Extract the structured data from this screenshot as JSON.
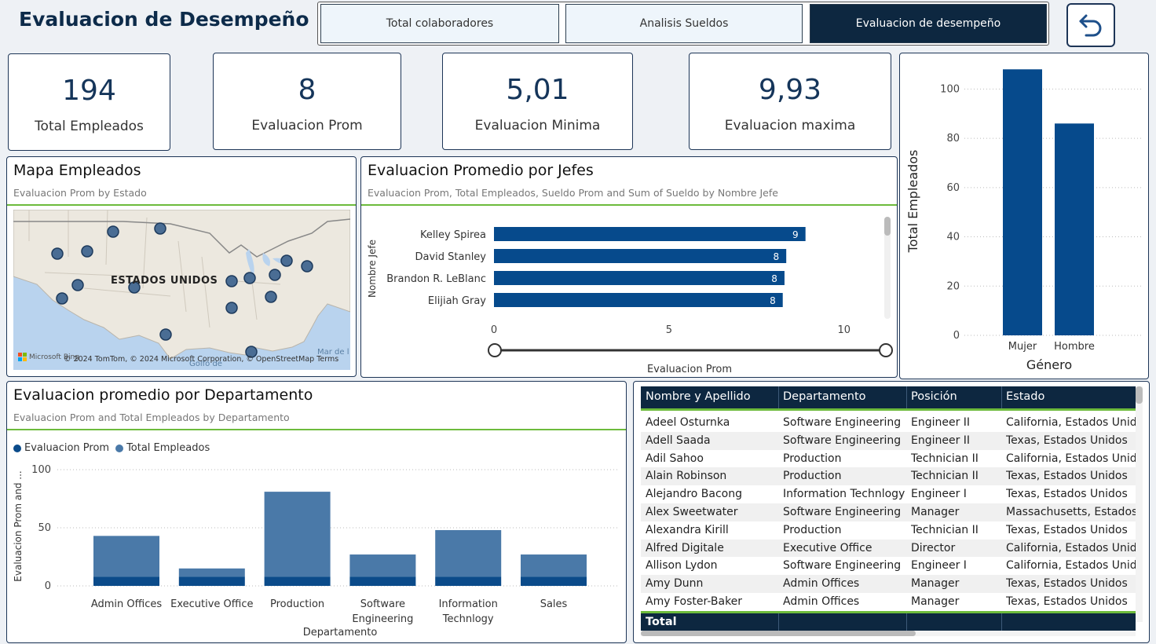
{
  "header": {
    "title": "Evaluacion de Desempeño",
    "tabs": [
      {
        "label": "Total colaboradores"
      },
      {
        "label": "Analisis Sueldos"
      },
      {
        "label": "Evaluacion de desempeño"
      }
    ],
    "active_tab": 2
  },
  "kpis": [
    {
      "value": "194",
      "label": "Total Empleados"
    },
    {
      "value": "8",
      "label": "Evaluacion Prom"
    },
    {
      "value": "5,01",
      "label": "Evaluacion Minima"
    },
    {
      "value": "9,93",
      "label": "Evaluacion maxima"
    }
  ],
  "map": {
    "title": "Mapa Empleados",
    "subtitle": "Evaluacion Prom by Estado",
    "country_label": "ESTADOS UNIDOS",
    "water_label": "Mar de l",
    "gulf_label": "Golfo de",
    "attribution": "© 2024 TomTom, © 2024 Microsoft Corporation, © OpenStreetMap  Terms",
    "brand": "Microsoft Bing"
  },
  "gender_chart": {
    "chart_data": {
      "type": "bar",
      "categories": [
        "Mujer",
        "Hombre"
      ],
      "values": [
        108,
        86
      ],
      "ylabel": "Total Empleados",
      "xlabel": "Género",
      "ylim": [
        0,
        110
      ],
      "yticks": [
        0,
        20,
        40,
        60,
        80,
        100
      ],
      "color": "#064a8c",
      "grid": true
    }
  },
  "bosses_chart": {
    "title": "Evaluacion Promedio por Jefes",
    "subtitle": "Evaluacion Prom, Total Empleados, Sueldo Prom and Sum of Sueldo by Nombre Jefe",
    "chart_data": {
      "type": "bar",
      "orientation": "horizontal",
      "categories": [
        "Kelley Spirea",
        "David Stanley",
        "Brandon R. LeBlanc",
        "Elijiah Gray"
      ],
      "values": [
        8.9,
        8.35,
        8.3,
        8.25
      ],
      "value_labels": [
        "9",
        "8",
        "8",
        "8"
      ],
      "xlabel": "Evaluacion Prom",
      "ylabel": "Nombre Jefe",
      "xlim": [
        0,
        10.5
      ],
      "xticks": [
        "0",
        "5",
        "10"
      ],
      "color": "#064a8c"
    }
  },
  "dept_chart": {
    "title": "Evaluacion promedio por Departamento",
    "subtitle": "Evaluacion Prom and Total Empleados by Departamento",
    "legend": [
      "Evaluacion Prom",
      "Total Empleados"
    ],
    "chart_data": {
      "type": "bar",
      "stacked": true,
      "categories": [
        "Admin Offices",
        "Executive Office",
        "Production",
        "Software Engineering",
        "Information Technlogy",
        "Sales"
      ],
      "category_lines": [
        [
          "Admin Offices"
        ],
        [
          "Executive Office"
        ],
        [
          "Production"
        ],
        [
          "Software",
          "Engineering"
        ],
        [
          "Information",
          "Technlogy"
        ],
        [
          "Sales"
        ]
      ],
      "series": [
        {
          "name": "Evaluacion Prom",
          "values": [
            8,
            8,
            8,
            8,
            8,
            8
          ],
          "color": "#0b4b8a"
        },
        {
          "name": "Total Empleados",
          "values": [
            35,
            7,
            73,
            19,
            40,
            19
          ],
          "color": "#4a79a8"
        }
      ],
      "ylabel": "Evaluacion Prom and ...",
      "xlabel": "Departamento",
      "ylim": [
        0,
        100
      ],
      "yticks": [
        0,
        50,
        100
      ],
      "grid": true
    }
  },
  "table": {
    "columns": [
      "Nombre y Apellido",
      "Departamento",
      "Posición",
      "Estado"
    ],
    "rows": [
      [
        "Adeel Osturnka",
        "Software Engineering",
        "Engineer II",
        "California, Estados Unidos"
      ],
      [
        "Adell Saada",
        "Software Engineering",
        "Engineer II",
        "Texas, Estados Unidos"
      ],
      [
        "Adil Sahoo",
        "Production",
        "Technician II",
        "California, Estados Unidos"
      ],
      [
        "Alain Robinson",
        "Production",
        "Technician II",
        "Texas, Estados Unidos"
      ],
      [
        "Alejandro Bacong",
        "Information Technlogy",
        "Engineer I",
        "Texas, Estados Unidos"
      ],
      [
        "Alex Sweetwater",
        "Software Engineering",
        "Manager",
        "Massachusetts, Estados Unidos"
      ],
      [
        "Alexandra Kirill",
        "Production",
        "Technician II",
        "Texas, Estados Unidos"
      ],
      [
        "Alfred Digitale",
        "Executive Office",
        "Director",
        "California, Estados Unidos"
      ],
      [
        "Allison Lydon",
        "Software Engineering",
        "Engineer I",
        "California, Estados Unidos"
      ],
      [
        "Amy Dunn",
        "Admin Offices",
        "Manager",
        "Texas, Estados Unidos"
      ],
      [
        "Amy Foster-Baker",
        "Admin Offices",
        "Manager",
        "Texas, Estados Unidos"
      ]
    ],
    "total_label": "Total"
  }
}
